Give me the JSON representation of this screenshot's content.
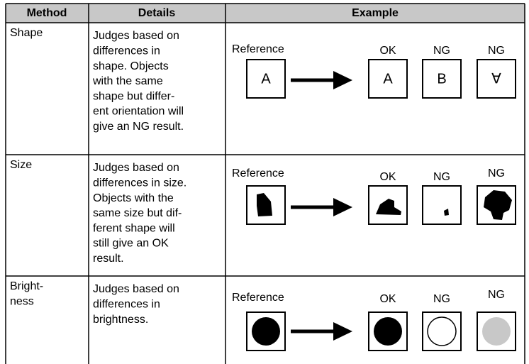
{
  "table": {
    "header": [
      "Method",
      "Details",
      "Example"
    ],
    "rows": [
      {
        "method": [
          "Shape"
        ],
        "details": [
          "Judges based on",
          "differences in",
          "shape. Objects",
          "with the same",
          "shape but differ-",
          "ent orientation will",
          "give an NG result."
        ],
        "example": {
          "reference": "Reference",
          "results": [
            "OK",
            "NG",
            "NG"
          ],
          "glyphs": [
            "A",
            "A",
            "B",
            "∀"
          ]
        }
      },
      {
        "method": [
          "Size"
        ],
        "details": [
          "Judges based on",
          "differences in size.",
          "Objects with the",
          "same size but dif-",
          "ferent shape will",
          "still give an OK",
          "result."
        ],
        "example": {
          "reference": "Reference",
          "results": [
            "OK",
            "NG",
            "NG"
          ]
        }
      },
      {
        "method": [
          "Bright-",
          "ness"
        ],
        "details": [
          "Judges based on",
          "differences in",
          "brightness."
        ],
        "example": {
          "reference": "Reference",
          "results": [
            "OK",
            "NG",
            "NG"
          ]
        }
      }
    ]
  }
}
